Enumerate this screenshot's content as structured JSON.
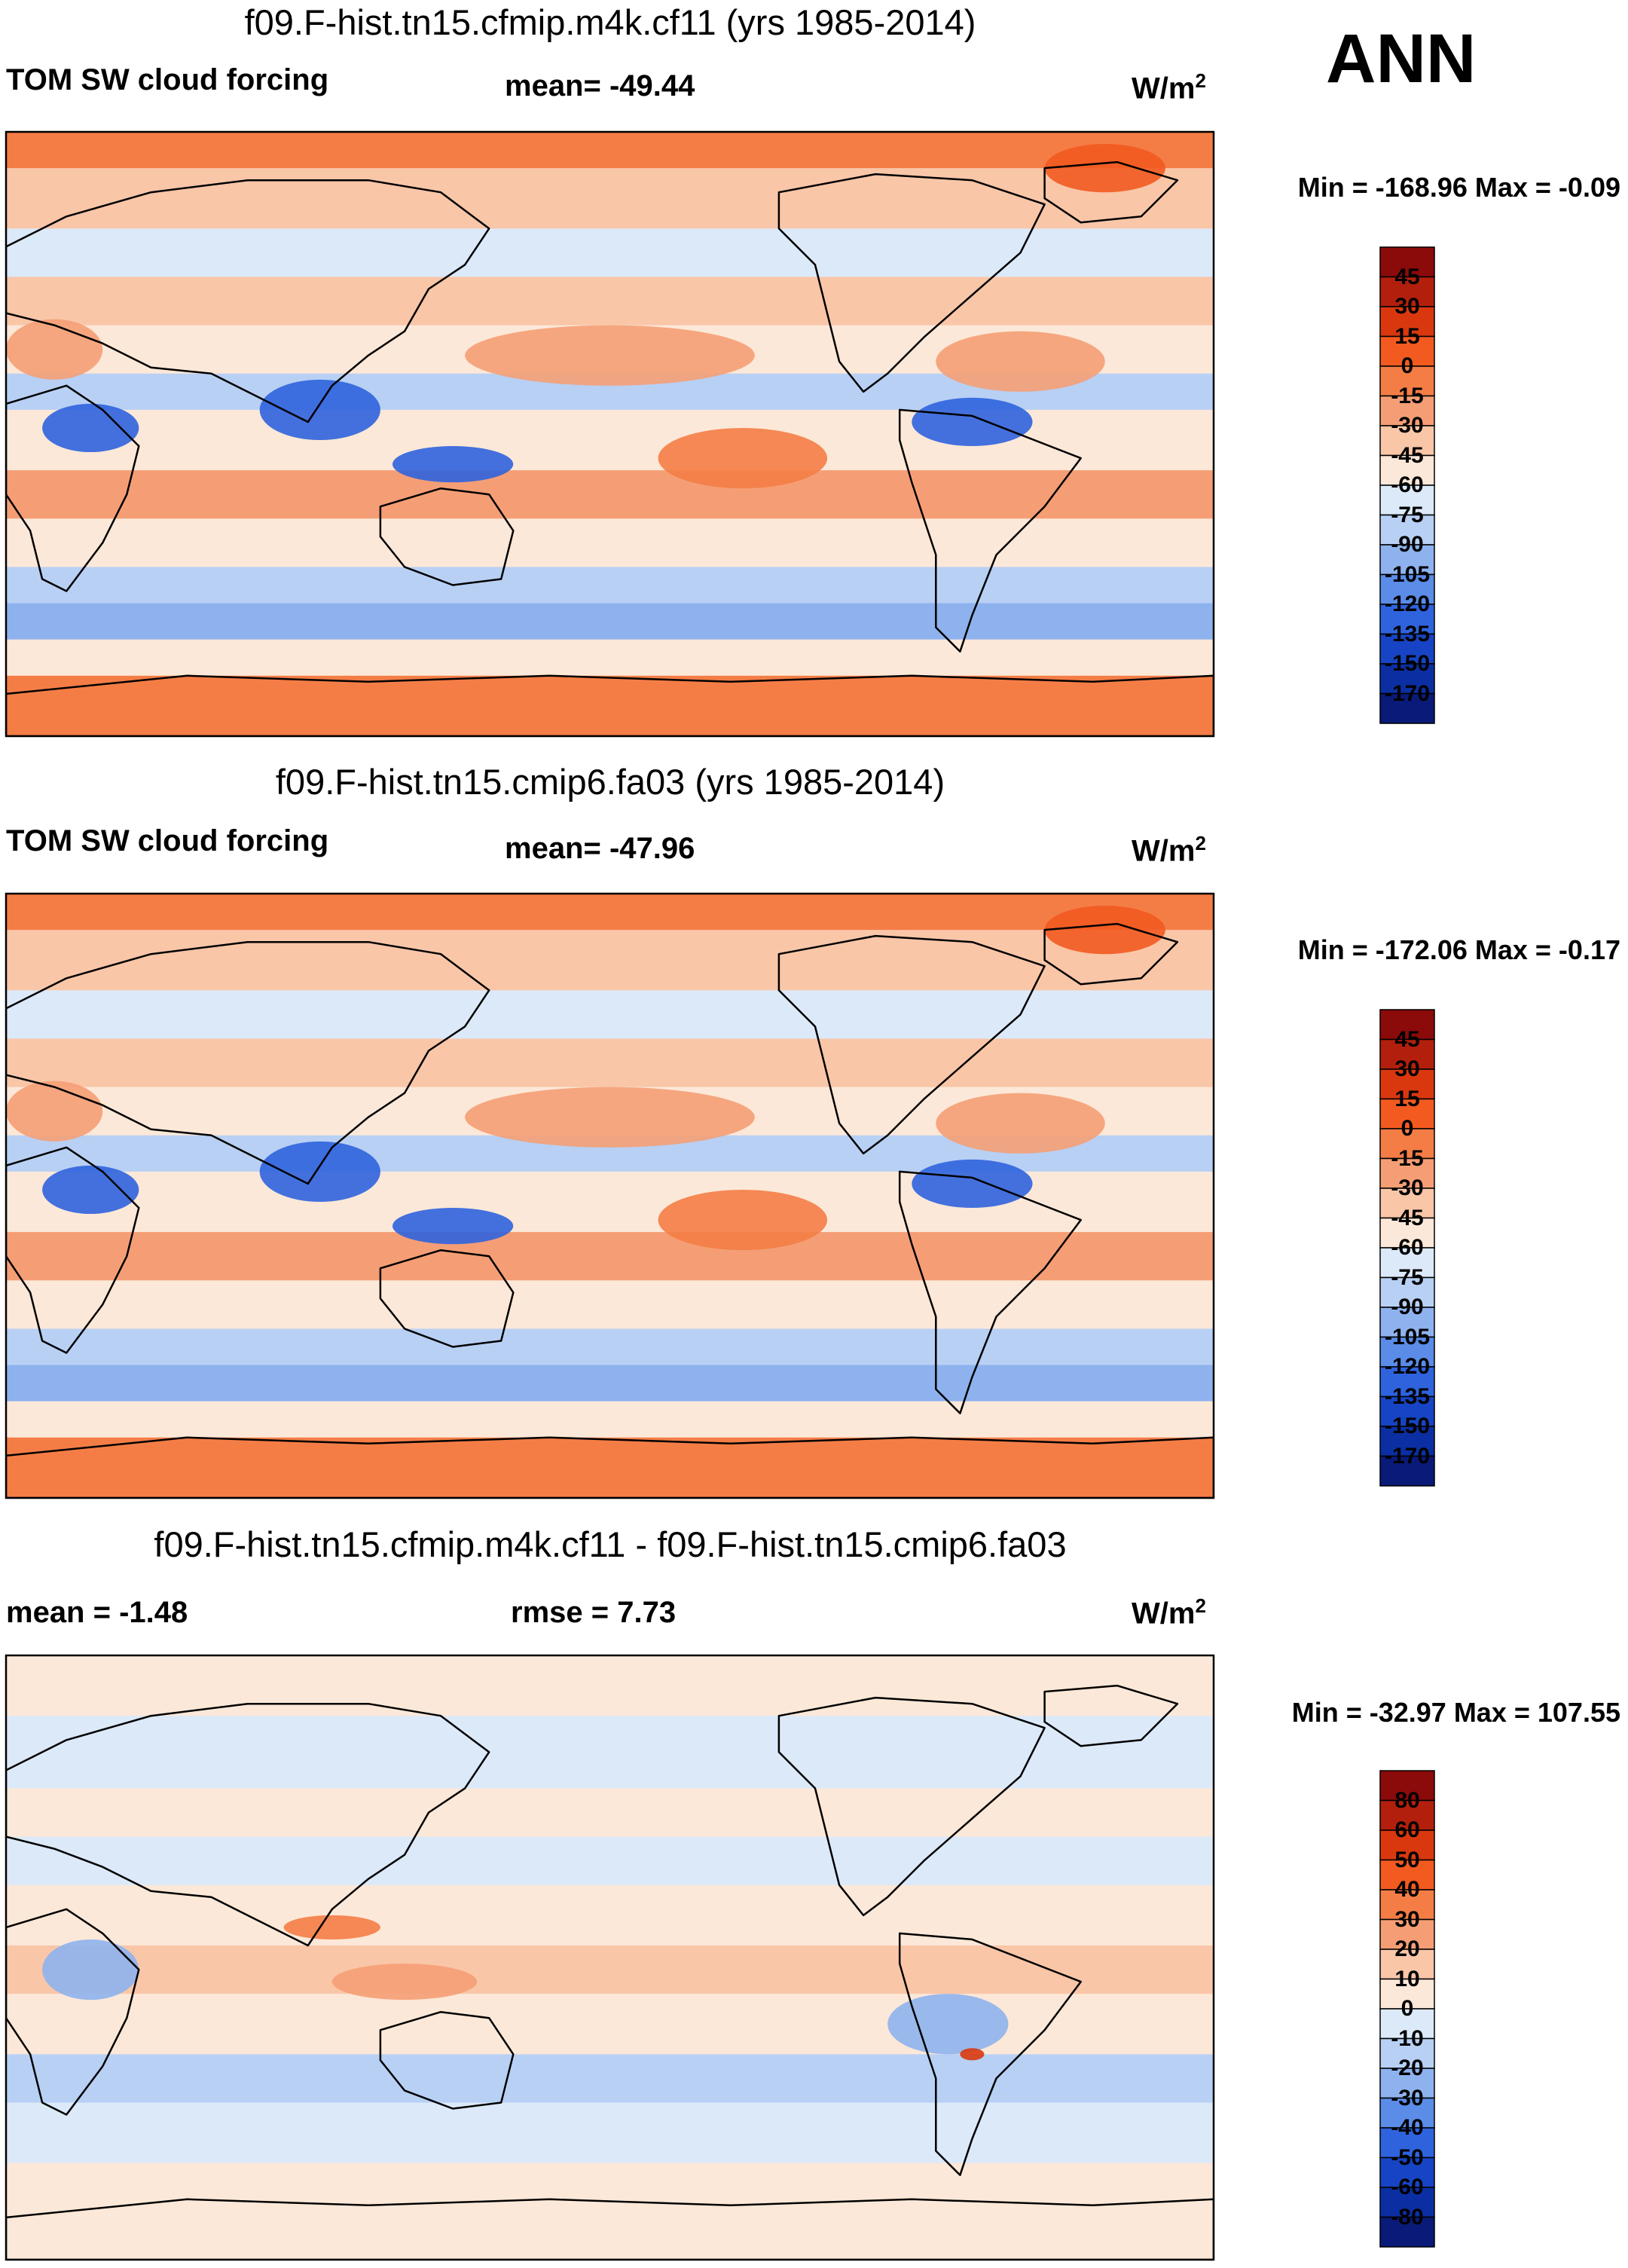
{
  "season": "ANN",
  "panels": [
    {
      "title": "f09.F-hist.tn15.cfmip.m4k.cf11 (yrs 1985-2014)",
      "left_label": "TOM SW cloud forcing",
      "mid_label": "mean= -49.44",
      "units": "W/m",
      "units_sup": "2",
      "minmax": "Min = -168.96 Max =  -0.09"
    },
    {
      "title": "f09.F-hist.tn15.cmip6.fa03 (yrs 1985-2014)",
      "left_label": "TOM SW cloud forcing",
      "mid_label": "mean= -47.96",
      "units": "W/m",
      "units_sup": "2",
      "minmax": "Min = -172.06 Max =  -0.17"
    },
    {
      "title": "f09.F-hist.tn15.cfmip.m4k.cf11 - f09.F-hist.tn15.cmip6.fa03",
      "left_label": "mean =  -1.48",
      "mid_label": "rmse =   7.73",
      "units": "W/m",
      "units_sup": "2",
      "minmax": "Min = -32.97 Max = 107.55"
    }
  ],
  "chart_data": [
    {
      "type": "heatmap",
      "title": "f09.F-hist.tn15.cfmip.m4k.cf11 (yrs 1985-2014)",
      "variable": "TOM SW cloud forcing",
      "units": "W/m2",
      "mean": -49.44,
      "min": -168.96,
      "max": -0.09,
      "colorbar_ticks": [
        "45",
        "30",
        "15",
        "0",
        "-15",
        "-30",
        "-45",
        "-60",
        "-75",
        "-90",
        "-105",
        "-120",
        "-135",
        "-150",
        "-170"
      ],
      "colorbar_colors": [
        "#8b0a0a",
        "#b2200d",
        "#d9380f",
        "#f25a20",
        "#f47d46",
        "#f59e75",
        "#f9c6a8",
        "#fce8d8",
        "#dce9f9",
        "#b8d0f4",
        "#8eb2ee",
        "#5a8ce8",
        "#2f63de",
        "#1744c4",
        "#0b2fa2",
        "#0a1a78"
      ]
    },
    {
      "type": "heatmap",
      "title": "f09.F-hist.tn15.cmip6.fa03 (yrs 1985-2014)",
      "variable": "TOM SW cloud forcing",
      "units": "W/m2",
      "mean": -47.96,
      "min": -172.06,
      "max": -0.17,
      "colorbar_ticks": [
        "45",
        "30",
        "15",
        "0",
        "-15",
        "-30",
        "-45",
        "-60",
        "-75",
        "-90",
        "-105",
        "-120",
        "-135",
        "-150",
        "-170"
      ],
      "colorbar_colors": [
        "#8b0a0a",
        "#b2200d",
        "#d9380f",
        "#f25a20",
        "#f47d46",
        "#f59e75",
        "#f9c6a8",
        "#fce8d8",
        "#dce9f9",
        "#b8d0f4",
        "#8eb2ee",
        "#5a8ce8",
        "#2f63de",
        "#1744c4",
        "#0b2fa2",
        "#0a1a78"
      ]
    },
    {
      "type": "heatmap",
      "title": "f09.F-hist.tn15.cfmip.m4k.cf11 - f09.F-hist.tn15.cmip6.fa03",
      "units": "W/m2",
      "mean": -1.48,
      "rmse": 7.73,
      "min": -32.97,
      "max": 107.55,
      "colorbar_ticks": [
        "80",
        "60",
        "50",
        "40",
        "30",
        "20",
        "10",
        "0",
        "-10",
        "-20",
        "-30",
        "-40",
        "-50",
        "-60",
        "-80"
      ],
      "colorbar_colors": [
        "#8b0a0a",
        "#b2200d",
        "#d9380f",
        "#f25a20",
        "#f47d46",
        "#f59e75",
        "#f9c6a8",
        "#fce8d8",
        "#dce9f9",
        "#b8d0f4",
        "#8eb2ee",
        "#5a8ce8",
        "#2f63de",
        "#1744c4",
        "#0b2fa2",
        "#0a1a78"
      ]
    }
  ]
}
